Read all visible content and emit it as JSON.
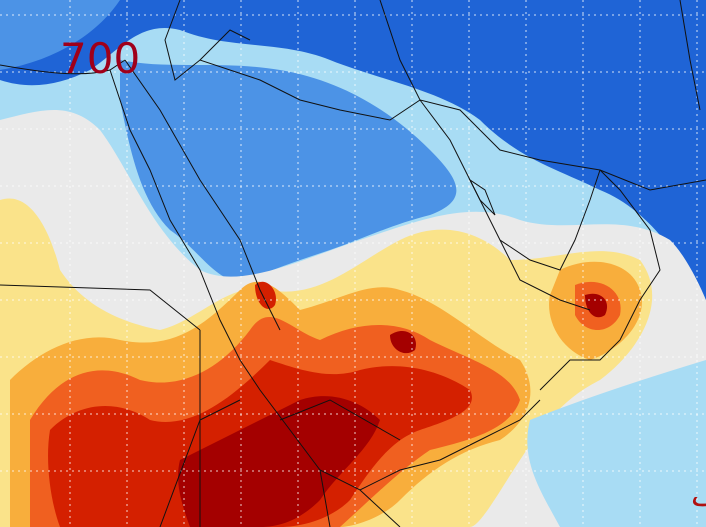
{
  "map": {
    "level_label": "700",
    "signature": "مهب الهيف"
  }
}
